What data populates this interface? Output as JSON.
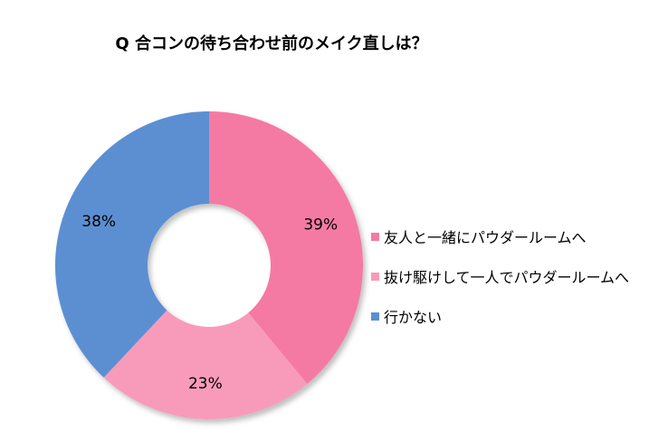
{
  "chart_data": {
    "type": "pie",
    "title": "Q 合コンの待ち合わせ前のメイク直しは？",
    "categories": [
      "友人と一緒にパウダールームへ",
      "抜け駆けして一人でパウダールームへ",
      "行かない"
    ],
    "values": [
      39,
      23,
      38
    ],
    "value_labels": [
      "39%",
      "23%",
      "38%"
    ],
    "colors": [
      "#f47aa3",
      "#f89bbb",
      "#5b8fd2"
    ],
    "donut": true,
    "legend_position": "right"
  }
}
